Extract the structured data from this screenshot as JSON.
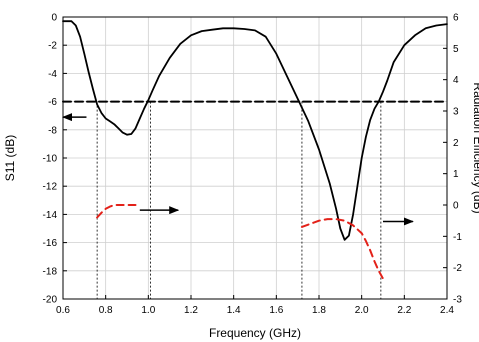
{
  "chart_data": {
    "type": "line",
    "title": "",
    "xlabel": "Frequency (GHz)",
    "ylabel_left": "S11 (dB)",
    "ylabel_right": "Radiation Efficiency (dB)",
    "xlim": [
      0.6,
      2.4
    ],
    "ylim_left": [
      -20,
      0
    ],
    "ylim_right": [
      -3,
      6
    ],
    "x_ticks": [
      "0.6",
      "0.8",
      "1.0",
      "1.2",
      "1.4",
      "1.6",
      "1.8",
      "2.0",
      "2.2",
      "2.4"
    ],
    "y_ticks_left": [
      "0",
      "-2",
      "-4",
      "-6",
      "-8",
      "-10",
      "-12",
      "-14",
      "-16",
      "-18",
      "-20"
    ],
    "y_ticks_right": [
      "6",
      "5",
      "4",
      "3",
      "2",
      "1",
      "0",
      "-1",
      "-2",
      "-3"
    ],
    "grid": true,
    "series": [
      {
        "axis": "left",
        "style": "solid",
        "color": "#000000",
        "x": [
          0.6,
          0.62,
          0.64,
          0.66,
          0.68,
          0.7,
          0.72,
          0.74,
          0.76,
          0.78,
          0.8,
          0.82,
          0.84,
          0.86,
          0.88,
          0.9,
          0.92,
          0.94,
          0.96,
          0.98,
          1.0,
          1.02,
          1.05,
          1.1,
          1.15,
          1.2,
          1.25,
          1.3,
          1.35,
          1.4,
          1.45,
          1.5,
          1.55,
          1.6,
          1.65,
          1.7,
          1.75,
          1.8,
          1.85,
          1.88,
          1.9,
          1.92,
          1.94,
          1.96,
          1.98,
          2.0,
          2.02,
          2.04,
          2.06,
          2.08,
          2.1,
          2.12,
          2.15,
          2.2,
          2.25,
          2.3,
          2.35,
          2.4
        ],
        "y": [
          -0.3,
          -0.3,
          -0.3,
          -0.6,
          -1.4,
          -2.6,
          -3.9,
          -5.1,
          -6.2,
          -6.8,
          -7.2,
          -7.4,
          -7.6,
          -7.9,
          -8.2,
          -8.35,
          -8.3,
          -7.9,
          -7.2,
          -6.5,
          -5.9,
          -5.2,
          -4.2,
          -2.9,
          -1.9,
          -1.3,
          -1.0,
          -0.9,
          -0.8,
          -0.8,
          -0.85,
          -0.95,
          -1.4,
          -2.6,
          -4.2,
          -5.8,
          -7.4,
          -9.4,
          -11.8,
          -13.6,
          -15.0,
          -15.8,
          -15.5,
          -14.0,
          -12.0,
          -10.0,
          -8.5,
          -7.3,
          -6.5,
          -6.0,
          -5.3,
          -4.5,
          -3.2,
          -2.0,
          -1.3,
          -0.8,
          -0.6,
          -0.5
        ]
      },
      {
        "axis": "left",
        "style": "dashed",
        "color": "#000000",
        "x": [
          0.6,
          2.4
        ],
        "y": [
          -6,
          -6
        ]
      },
      {
        "axis": "right",
        "style": "dashed",
        "color": "#e32119",
        "x": [
          0.76,
          0.78,
          0.8,
          0.82,
          0.84,
          0.86,
          0.88,
          0.9,
          0.92,
          0.94
        ],
        "y": [
          -0.4,
          -0.25,
          -0.12,
          -0.05,
          0.0,
          0.0,
          0.0,
          0.0,
          0.0,
          0.0
        ]
      },
      {
        "axis": "right",
        "style": "dashed",
        "color": "#e32119",
        "x": [
          1.72,
          1.76,
          1.8,
          1.84,
          1.88,
          1.92,
          1.96,
          2.0,
          2.02,
          2.04,
          2.06,
          2.08,
          2.1
        ],
        "y": [
          -0.7,
          -0.6,
          -0.5,
          -0.45,
          -0.45,
          -0.5,
          -0.65,
          -0.9,
          -1.15,
          -1.45,
          -1.8,
          -2.1,
          -2.35
        ]
      }
    ],
    "markers": {
      "dotted_vlines_x": [
        0.76,
        1.01,
        1.72,
        2.09
      ],
      "arrows": [
        {
          "direction": "left",
          "axis": "left",
          "x_from": 0.71,
          "x_to": 0.6,
          "y": -7.1
        },
        {
          "direction": "right",
          "axis": "left",
          "x_from": 0.96,
          "x_to": 1.14,
          "y": -13.7
        },
        {
          "direction": "right",
          "axis": "left",
          "x_from": 2.1,
          "x_to": 2.24,
          "y": -14.5
        }
      ]
    }
  }
}
